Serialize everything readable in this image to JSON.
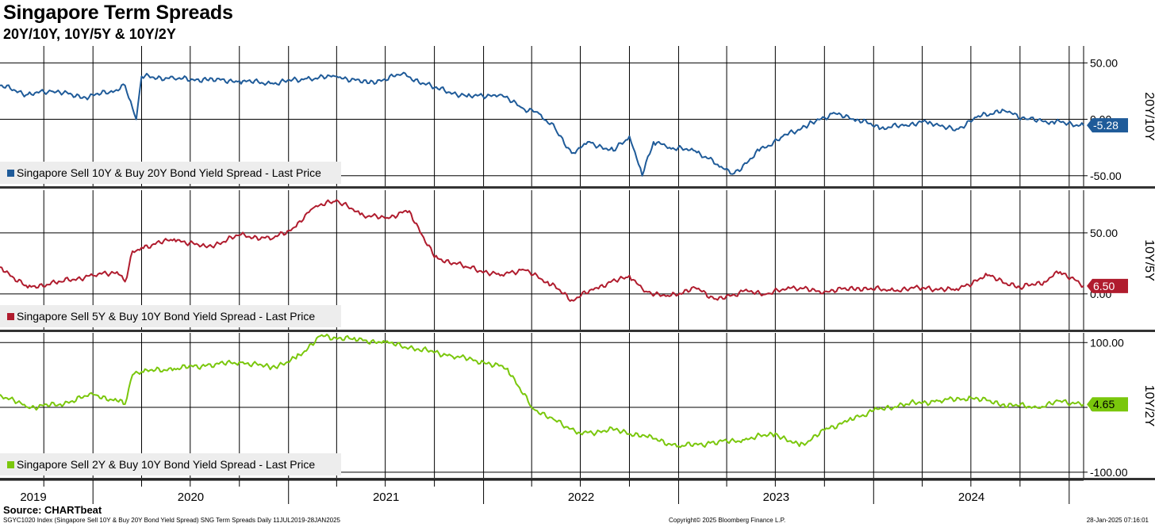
{
  "title": "Singapore Term Spreads",
  "subtitle": "20Y/10Y, 10Y/5Y & 10Y/2Y",
  "source": "Source: CHARTbeat",
  "footer": {
    "left": "SGYC1020 Index (Singapore Sell 10Y & Buy 20Y Bond Yield Spread) SNG Term Spreads  Daily 11JUL2019-28JAN2025",
    "center": "Copyright© 2025 Bloomberg Finance L.P.",
    "right": "28-Jan-2025 07:16:01"
  },
  "x_axis": {
    "year_labels": [
      "2019",
      "2020",
      "2021",
      "2022",
      "2023",
      "2024"
    ],
    "start": "2019-07-11",
    "end": "2025-01-28"
  },
  "chart_data": [
    {
      "type": "line",
      "axis_title": "20Y/10Y",
      "color": "#1f5b99",
      "ylim": [
        -60,
        65
      ],
      "yticks": [
        {
          "value": 50,
          "label": "50.00"
        },
        {
          "value": 0,
          "label": "0.00"
        },
        {
          "value": -50,
          "label": "-50.00"
        }
      ],
      "last_value": -5.28,
      "last_label": "-5.28",
      "series": [
        {
          "name": "Singapore Sell 10Y & Buy 20Y Bond Yield Spread - Last Price",
          "x": [
            "2019-07-11",
            "2019-09-01",
            "2019-10-15",
            "2019-12-15",
            "2020-02-01",
            "2020-03-01",
            "2020-03-15",
            "2020-03-22",
            "2020-04-01",
            "2020-06-01",
            "2020-08-01",
            "2020-10-01",
            "2020-12-01",
            "2021-02-01",
            "2021-04-01",
            "2021-06-01",
            "2021-08-01",
            "2021-10-01",
            "2021-12-01",
            "2022-02-01",
            "2022-03-15",
            "2022-04-15",
            "2022-05-15",
            "2022-06-15",
            "2022-07-15",
            "2022-09-01",
            "2022-10-01",
            "2022-10-25",
            "2022-11-15",
            "2022-12-15",
            "2023-02-01",
            "2023-03-15",
            "2023-04-15",
            "2023-06-01",
            "2023-07-15",
            "2023-09-01",
            "2023-10-15",
            "2023-12-01",
            "2024-01-15",
            "2024-03-01",
            "2024-04-15",
            "2024-06-01",
            "2024-07-15",
            "2024-09-01",
            "2024-10-15",
            "2024-12-01",
            "2025-01-28"
          ],
          "values": [
            30,
            22,
            25,
            20,
            24,
            30,
            10,
            0,
            38,
            36,
            35,
            34,
            32,
            36,
            38,
            32,
            40,
            28,
            20,
            22,
            10,
            5,
            -8,
            -30,
            -20,
            -28,
            -15,
            -50,
            -20,
            -25,
            -28,
            -40,
            -48,
            -28,
            -15,
            -5,
            5,
            0,
            -8,
            -5,
            -2,
            -10,
            3,
            8,
            0,
            -2,
            -5.28
          ]
        }
      ]
    },
    {
      "type": "line",
      "axis_title": "10Y/5Y",
      "color": "#b01c2e",
      "ylim": [
        -30,
        85
      ],
      "yticks": [
        {
          "value": 50,
          "label": "50.00"
        },
        {
          "value": 0,
          "label": "0.00"
        }
      ],
      "last_value": 6.5,
      "last_label": "6.50",
      "series": [
        {
          "name": "Singapore Sell 5Y & Buy 10Y Bond Yield Spread - Last Price",
          "x": [
            "2019-07-11",
            "2019-09-01",
            "2019-11-01",
            "2020-01-01",
            "2020-02-15",
            "2020-03-01",
            "2020-03-15",
            "2020-04-01",
            "2020-06-01",
            "2020-08-01",
            "2020-10-01",
            "2020-12-01",
            "2021-01-15",
            "2021-02-15",
            "2021-04-01",
            "2021-05-15",
            "2021-07-01",
            "2021-08-15",
            "2021-10-01",
            "2021-12-01",
            "2022-02-01",
            "2022-03-15",
            "2022-05-01",
            "2022-06-15",
            "2022-08-01",
            "2022-10-01",
            "2022-11-01",
            "2022-12-15",
            "2023-02-01",
            "2023-03-15",
            "2023-05-01",
            "2023-06-15",
            "2023-08-01",
            "2023-10-01",
            "2023-12-01",
            "2024-02-01",
            "2024-04-01",
            "2024-06-01",
            "2024-08-01",
            "2024-10-01",
            "2024-11-15",
            "2024-12-15",
            "2025-01-28"
          ],
          "values": [
            22,
            5,
            10,
            15,
            18,
            10,
            35,
            38,
            45,
            38,
            48,
            45,
            55,
            70,
            77,
            65,
            62,
            68,
            30,
            22,
            15,
            20,
            10,
            -5,
            5,
            15,
            2,
            -2,
            5,
            -5,
            2,
            0,
            5,
            2,
            5,
            3,
            5,
            3,
            15,
            5,
            10,
            18,
            6.5
          ]
        }
      ]
    },
    {
      "type": "line",
      "axis_title": "10Y/2Y",
      "color": "#7ac70c",
      "ylim": [
        -110,
        115
      ],
      "yticks": [
        {
          "value": 100,
          "label": "100.00"
        },
        {
          "value": 0,
          "label": "0.00"
        },
        {
          "value": -100,
          "label": "-100.00"
        }
      ],
      "last_value": 4.65,
      "last_label": "4.65",
      "series": [
        {
          "name": "Singapore Sell 2Y & Buy 10Y Bond Yield Spread - Last Price",
          "x": [
            "2019-07-11",
            "2019-09-01",
            "2019-11-01",
            "2020-01-01",
            "2020-02-15",
            "2020-03-01",
            "2020-03-15",
            "2020-04-01",
            "2020-06-01",
            "2020-08-01",
            "2020-10-01",
            "2020-12-01",
            "2021-01-15",
            "2021-03-01",
            "2021-05-01",
            "2021-07-01",
            "2021-09-01",
            "2021-11-01",
            "2022-01-01",
            "2022-02-15",
            "2022-04-01",
            "2022-05-15",
            "2022-07-01",
            "2022-09-01",
            "2022-11-01",
            "2023-01-01",
            "2023-03-01",
            "2023-05-01",
            "2023-07-01",
            "2023-08-15",
            "2023-10-01",
            "2023-11-15",
            "2024-01-01",
            "2024-03-01",
            "2024-05-01",
            "2024-07-01",
            "2024-09-01",
            "2024-11-01",
            "2024-12-15",
            "2025-01-28"
          ],
          "values": [
            20,
            0,
            5,
            20,
            10,
            5,
            50,
            55,
            60,
            65,
            70,
            62,
            75,
            110,
            105,
            100,
            90,
            80,
            70,
            60,
            0,
            -20,
            -40,
            -35,
            -45,
            -60,
            -55,
            -50,
            -40,
            -60,
            -35,
            -20,
            -5,
            5,
            10,
            15,
            5,
            0,
            10,
            4.65
          ]
        }
      ]
    }
  ]
}
